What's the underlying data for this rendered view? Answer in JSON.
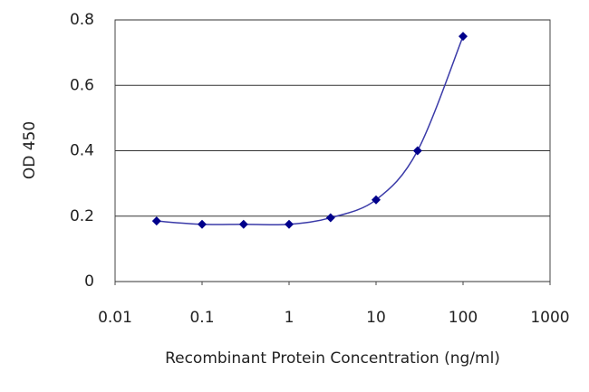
{
  "chart_data": {
    "type": "line",
    "x_label": "Recombinant Protein Concentration (ng/ml)",
    "y_label": "OD 450",
    "x": [
      0.03,
      0.1,
      0.3,
      1,
      3,
      10,
      30,
      100
    ],
    "series": [
      {
        "color": "#00008b",
        "values": [
          0.185,
          0.175,
          0.175,
          0.175,
          0.195,
          0.25,
          0.4,
          0.75
        ]
      }
    ],
    "xscale": "log",
    "xlim": [
      0.01,
      1000
    ],
    "xticks": [
      0.01,
      0.1,
      1,
      10,
      100,
      1000
    ],
    "ylim": [
      0,
      0.8
    ],
    "yticks": [
      0,
      0.2,
      0.4,
      0.6,
      0.8
    ],
    "grid": true
  }
}
